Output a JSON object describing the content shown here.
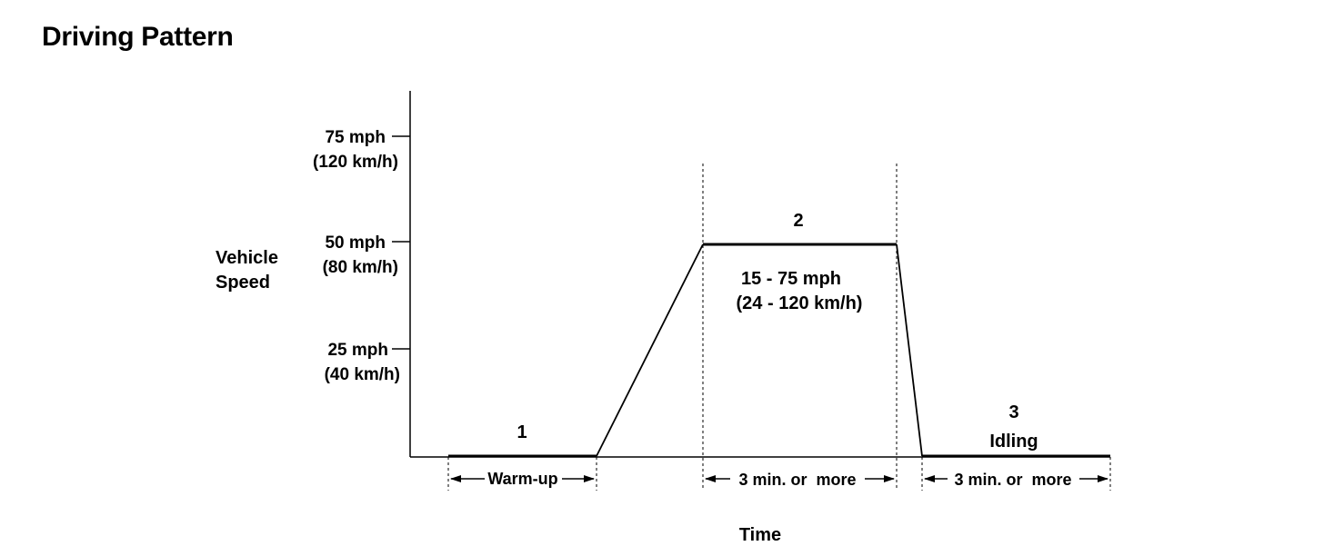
{
  "title": "Driving Pattern",
  "y_axis_label": [
    "Vehicle",
    "Speed"
  ],
  "x_axis_label": "Time",
  "y_ticks": [
    {
      "speed_mph": 75,
      "label": "75 mph",
      "sub": "(120 km/h)"
    },
    {
      "speed_mph": 50,
      "label": "50 mph",
      "sub": "(80 km/h)"
    },
    {
      "speed_mph": 25,
      "label": "25 mph",
      "sub": "(40 km/h)"
    }
  ],
  "phases": [
    {
      "number": "1",
      "name": "",
      "span_label": "Warm-up"
    },
    {
      "number": "2",
      "name": "",
      "range_label": "15 - 75 mph",
      "range_sub": "(24 - 120 km/h)",
      "span_label": "3 min. or  more"
    },
    {
      "number": "3",
      "name": "Idling",
      "span_label": "3 min. or  more"
    }
  ]
}
